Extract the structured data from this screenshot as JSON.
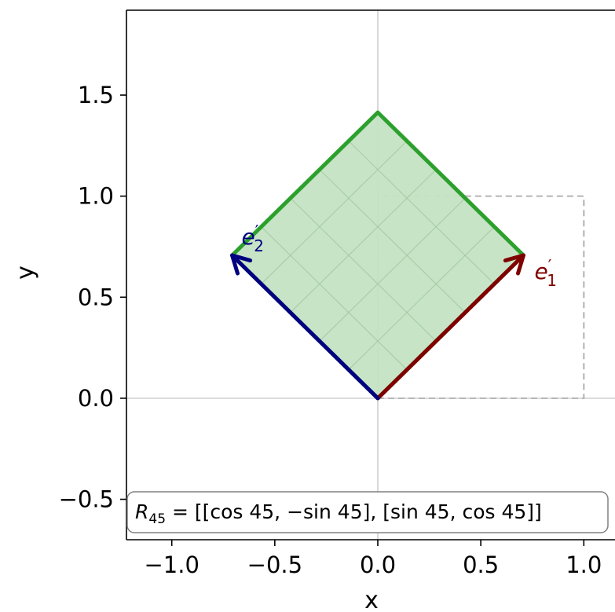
{
  "chart_data": {
    "type": "line",
    "title": "",
    "xlabel": "x",
    "ylabel": "y",
    "xlim": [
      -1.22,
      1.22
    ],
    "ylim": [
      -0.7,
      1.92
    ],
    "xticks": [
      -1.0,
      -0.5,
      0.0,
      0.5,
      1.0
    ],
    "yticks": [
      -0.5,
      0.0,
      0.5,
      1.0,
      1.5
    ],
    "xtick_labels": [
      "−1.0",
      "−0.5",
      "0.0",
      "0.5",
      "1.0"
    ],
    "ytick_labels": [
      "−0.5",
      "0.0",
      "0.5",
      "1.0",
      "1.5"
    ],
    "original_square": [
      [
        0,
        0
      ],
      [
        1,
        0
      ],
      [
        1,
        1
      ],
      [
        0,
        1
      ]
    ],
    "rotated_square": [
      [
        0,
        0
      ],
      [
        0.7071,
        0.7071
      ],
      [
        0,
        1.4142
      ],
      [
        -0.7071,
        0.7071
      ]
    ],
    "inner_grid_divisions": 5,
    "vectors": [
      {
        "name": "e1_prime",
        "label_base": "e",
        "label_sub": "1",
        "label_prime": "′",
        "from": [
          0,
          0
        ],
        "to": [
          0.7071,
          0.7071
        ],
        "color": "#800000"
      },
      {
        "name": "e2_prime",
        "label_base": "e",
        "label_sub": "2",
        "label_prime": "′",
        "from": [
          0,
          0
        ],
        "to": [
          -0.7071,
          0.7071
        ],
        "color": "#000080"
      }
    ],
    "annotation": {
      "lhs": "R",
      "lhs_sub": "45",
      "rhs": " = [[cos 45, −sin 45], [sin 45, cos 45]]"
    },
    "colors": {
      "fill": "#c4e3c4",
      "edge": "#2ca02c",
      "grid": "#9cc49c",
      "dashed": "#b8b8b8",
      "axis_lines": "#bfbfbf"
    }
  }
}
